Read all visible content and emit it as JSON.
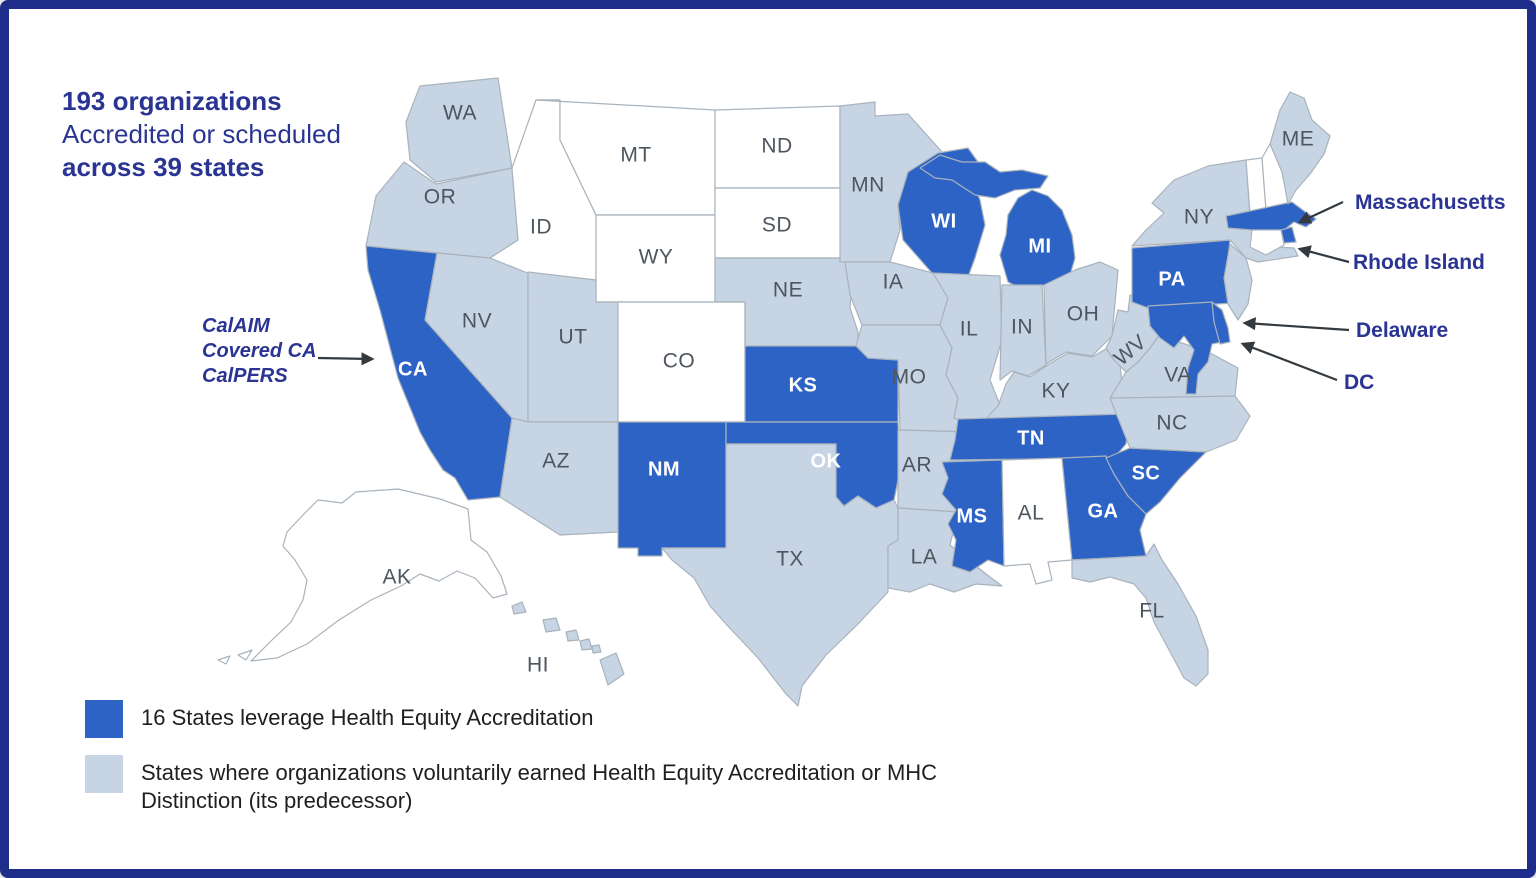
{
  "frame": {
    "border_color": "#1f2d8a",
    "background": "#ffffff"
  },
  "title": {
    "line1": "193 organizations",
    "line2": "Accredited or scheduled",
    "line3": "across 39 states",
    "color": "#2a3492"
  },
  "map": {
    "colors": {
      "leverage": "#2e63c6",
      "voluntary": "#c6d4e3",
      "none": "#ffffff",
      "border": "#a9b3bc"
    },
    "states": [
      {
        "abbr": "WA",
        "category": "voluntary"
      },
      {
        "abbr": "OR",
        "category": "voluntary"
      },
      {
        "abbr": "CA",
        "category": "leverage"
      },
      {
        "abbr": "NV",
        "category": "voluntary"
      },
      {
        "abbr": "ID",
        "category": "none"
      },
      {
        "abbr": "MT",
        "category": "none"
      },
      {
        "abbr": "WY",
        "category": "none"
      },
      {
        "abbr": "UT",
        "category": "voluntary"
      },
      {
        "abbr": "CO",
        "category": "none"
      },
      {
        "abbr": "AZ",
        "category": "voluntary"
      },
      {
        "abbr": "NM",
        "category": "leverage"
      },
      {
        "abbr": "ND",
        "category": "none"
      },
      {
        "abbr": "SD",
        "category": "none"
      },
      {
        "abbr": "NE",
        "category": "voluntary"
      },
      {
        "abbr": "KS",
        "category": "leverage"
      },
      {
        "abbr": "OK",
        "category": "leverage"
      },
      {
        "abbr": "TX",
        "category": "voluntary"
      },
      {
        "abbr": "MN",
        "category": "voluntary"
      },
      {
        "abbr": "IA",
        "category": "voluntary"
      },
      {
        "abbr": "MO",
        "category": "voluntary"
      },
      {
        "abbr": "AR",
        "category": "voluntary"
      },
      {
        "abbr": "LA",
        "category": "voluntary"
      },
      {
        "abbr": "WI",
        "category": "leverage"
      },
      {
        "abbr": "IL",
        "category": "voluntary"
      },
      {
        "abbr": "MI",
        "category": "leverage"
      },
      {
        "abbr": "IN",
        "category": "voluntary"
      },
      {
        "abbr": "OH",
        "category": "voluntary"
      },
      {
        "abbr": "KY",
        "category": "voluntary"
      },
      {
        "abbr": "TN",
        "category": "leverage"
      },
      {
        "abbr": "MS",
        "category": "leverage"
      },
      {
        "abbr": "AL",
        "category": "none"
      },
      {
        "abbr": "GA",
        "category": "leverage"
      },
      {
        "abbr": "SC",
        "category": "leverage"
      },
      {
        "abbr": "NC",
        "category": "voluntary"
      },
      {
        "abbr": "FL",
        "category": "voluntary"
      },
      {
        "abbr": "VA",
        "category": "voluntary"
      },
      {
        "abbr": "WV",
        "category": "voluntary"
      },
      {
        "abbr": "PA",
        "category": "leverage"
      },
      {
        "abbr": "NY",
        "category": "voluntary"
      },
      {
        "abbr": "NJ",
        "category": "voluntary",
        "show_label": false
      },
      {
        "abbr": "MD",
        "category": "leverage",
        "show_label": false
      },
      {
        "abbr": "DE",
        "category": "leverage",
        "show_label": false
      },
      {
        "abbr": "VT",
        "category": "none",
        "show_label": false
      },
      {
        "abbr": "NH",
        "category": "none",
        "show_label": false
      },
      {
        "abbr": "MA",
        "category": "leverage",
        "show_label": false
      },
      {
        "abbr": "RI",
        "category": "leverage",
        "show_label": false
      },
      {
        "abbr": "CT",
        "category": "none",
        "show_label": false
      },
      {
        "abbr": "ME",
        "category": "voluntary"
      },
      {
        "abbr": "AK",
        "category": "none"
      },
      {
        "abbr": "HI",
        "category": "voluntary"
      }
    ]
  },
  "annotations": {
    "california": {
      "line1": "CalAIM",
      "line2": "Covered CA",
      "line3": "CalPERS",
      "color": "#2a3492"
    },
    "callouts": [
      {
        "label": "Massachusetts"
      },
      {
        "label": "Rhode Island"
      },
      {
        "label": "Delaware"
      },
      {
        "label": "DC"
      }
    ]
  },
  "legend": {
    "items": [
      {
        "swatch": "leverage",
        "text": "16 States leverage Health Equity Accreditation"
      },
      {
        "swatch": "voluntary",
        "text": "States where organizations voluntarily earned Health Equity Accreditation or MHC Distinction (its predecessor)"
      }
    ]
  }
}
